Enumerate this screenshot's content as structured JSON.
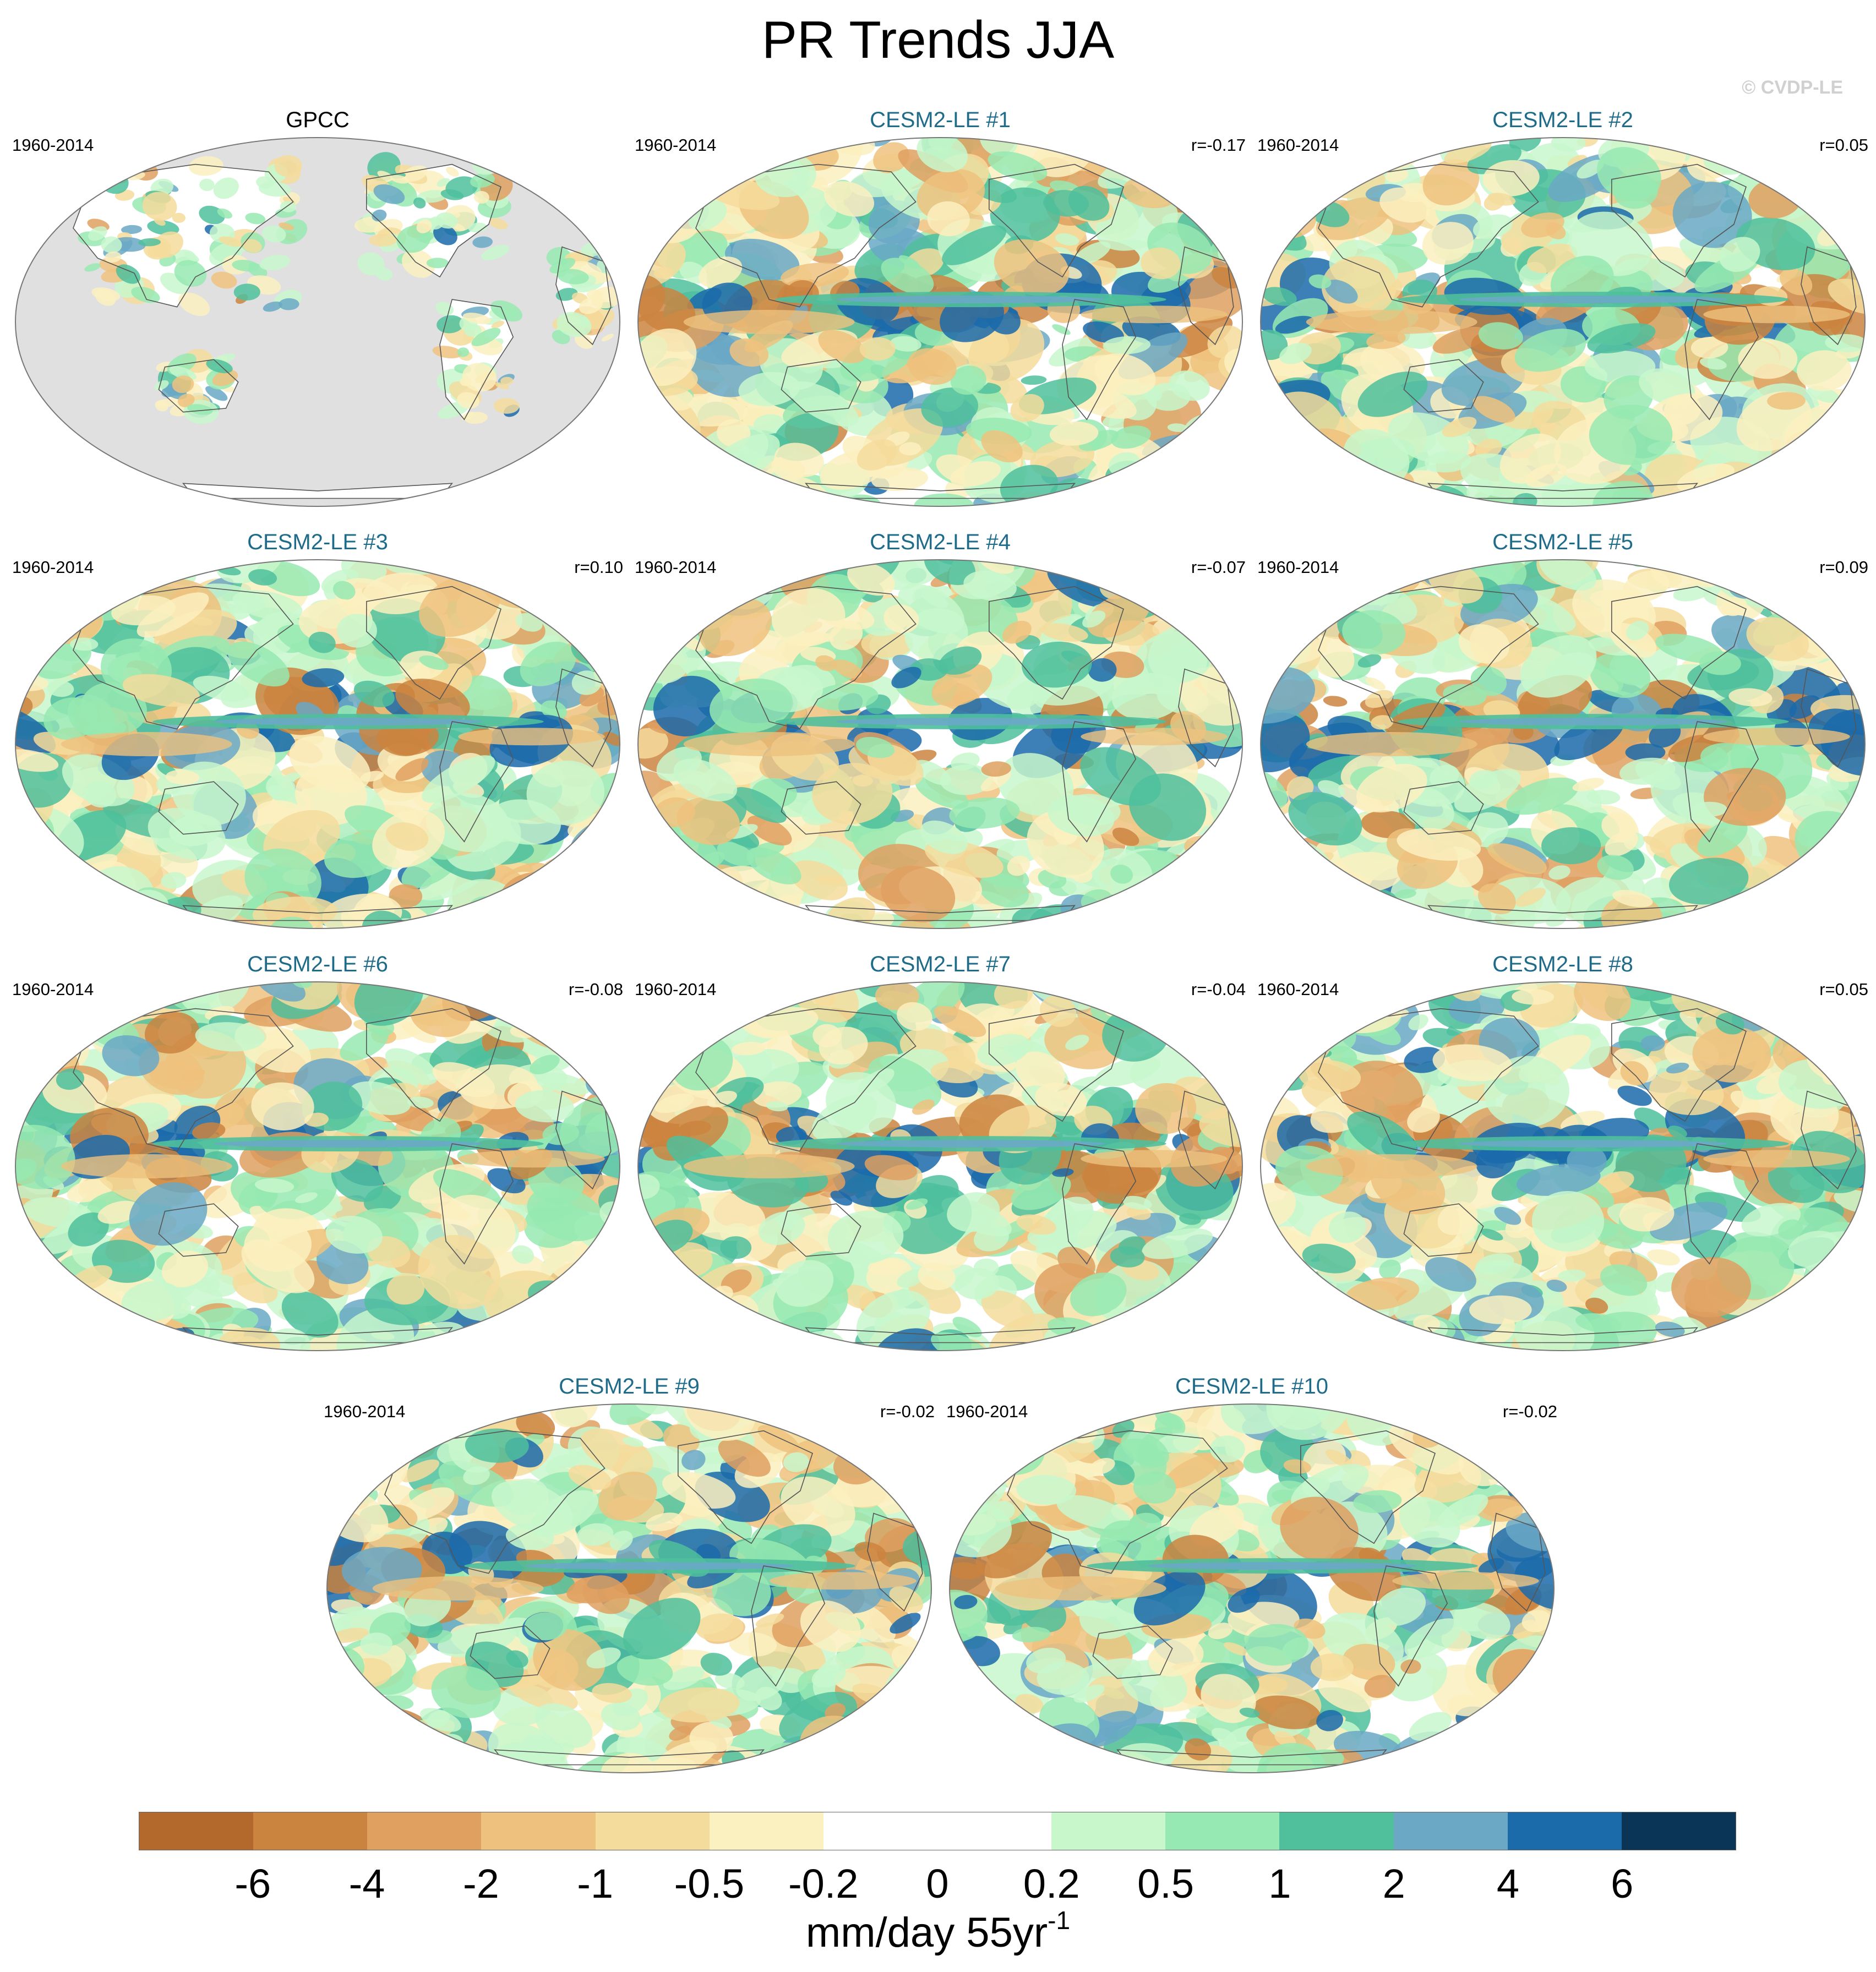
{
  "title": "PR Trends JJA",
  "watermark": "© CVDP-LE",
  "panels": [
    {
      "title": "GPCC",
      "years": "1960-2014",
      "r": "",
      "obs": true
    },
    {
      "title": "CESM2-LE #1",
      "years": "1960-2014",
      "r": "r=-0.17"
    },
    {
      "title": "CESM2-LE #2",
      "years": "1960-2014",
      "r": "r=0.05"
    },
    {
      "title": "CESM2-LE #3",
      "years": "1960-2014",
      "r": "r=0.10"
    },
    {
      "title": "CESM2-LE #4",
      "years": "1960-2014",
      "r": "r=-0.07"
    },
    {
      "title": "CESM2-LE #5",
      "years": "1960-2014",
      "r": "r=0.09"
    },
    {
      "title": "CESM2-LE #6",
      "years": "1960-2014",
      "r": "r=-0.08"
    },
    {
      "title": "CESM2-LE #7",
      "years": "1960-2014",
      "r": "r=-0.04"
    },
    {
      "title": "CESM2-LE #8",
      "years": "1960-2014",
      "r": "r=0.05"
    },
    {
      "title": "CESM2-LE #9",
      "years": "1960-2014",
      "r": "r=-0.02"
    },
    {
      "title": "CESM2-LE #10",
      "years": "1960-2014",
      "r": "r=-0.02"
    }
  ],
  "colors": {
    "obs_title": "#000000",
    "model_title": "#1f6b8a",
    "land_mask": "#e0e0e0",
    "coast": "#555555"
  },
  "colorbar": {
    "colors": [
      "#b2692b",
      "#cb843f",
      "#dfa060",
      "#eec27e",
      "#f4dc9c",
      "#fbf0bf",
      "#ffffff",
      "#ffffff",
      "#c8f7cc",
      "#96e9b2",
      "#4fbf9c",
      "#6aa8c6",
      "#1b6aaa",
      "#0a3556"
    ],
    "tick_labels": [
      "-6",
      "-4",
      "-2",
      "-1",
      "-0.5",
      "-0.2",
      "0",
      "0.2",
      "0.5",
      "1",
      "2",
      "4",
      "6"
    ],
    "units": "mm/day 55yr",
    "units_exponent": "-1"
  }
}
